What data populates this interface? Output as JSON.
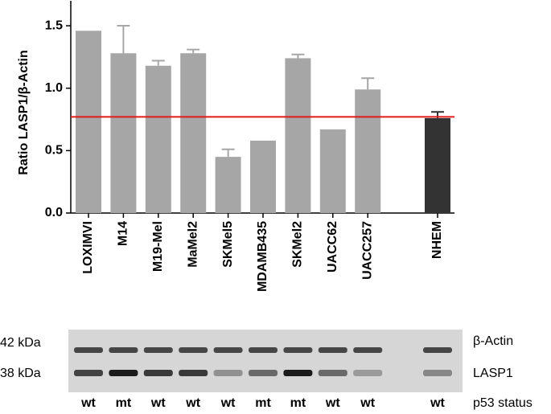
{
  "chart_data": {
    "type": "bar",
    "y_label": "Ratio LASP1/β-Actin",
    "categories": [
      "LOXIMVI",
      "M14",
      "M19-Mel",
      "MaMel2",
      "SKMel5",
      "MDAMB435",
      "SKMel2",
      "UACC62",
      "UACC257",
      null,
      "NHEM"
    ],
    "values": [
      1.46,
      1.28,
      1.18,
      1.28,
      0.45,
      0.58,
      1.24,
      0.67,
      0.99,
      null,
      0.76
    ],
    "errors": [
      null,
      0.22,
      0.04,
      0.03,
      0.06,
      null,
      0.03,
      null,
      0.09,
      null,
      0.05
    ],
    "colors": [
      "#a6a6a6",
      "#a6a6a6",
      "#a6a6a6",
      "#a6a6a6",
      "#a6a6a6",
      "#a6a6a6",
      "#a6a6a6",
      "#a6a6a6",
      "#a6a6a6",
      null,
      "#333333"
    ],
    "ylim": [
      0,
      1.7
    ],
    "yticks": [
      {
        "value": 0,
        "label": "0.0"
      },
      0.5,
      {
        "value": 1,
        "label": "1.0"
      },
      1.5
    ],
    "reference_line": {
      "value": 0.77,
      "color": "#e31a1c"
    },
    "blot": {
      "markers": [
        "42 kDa",
        "38 kDa"
      ],
      "proteins": [
        "β-Actin",
        "LASP1"
      ],
      "status_label": "p53 status",
      "p53": [
        "wt",
        "mt",
        "wt",
        "wt",
        "wt",
        "mt",
        "mt",
        "wt",
        "wt",
        null,
        "wt"
      ]
    }
  }
}
